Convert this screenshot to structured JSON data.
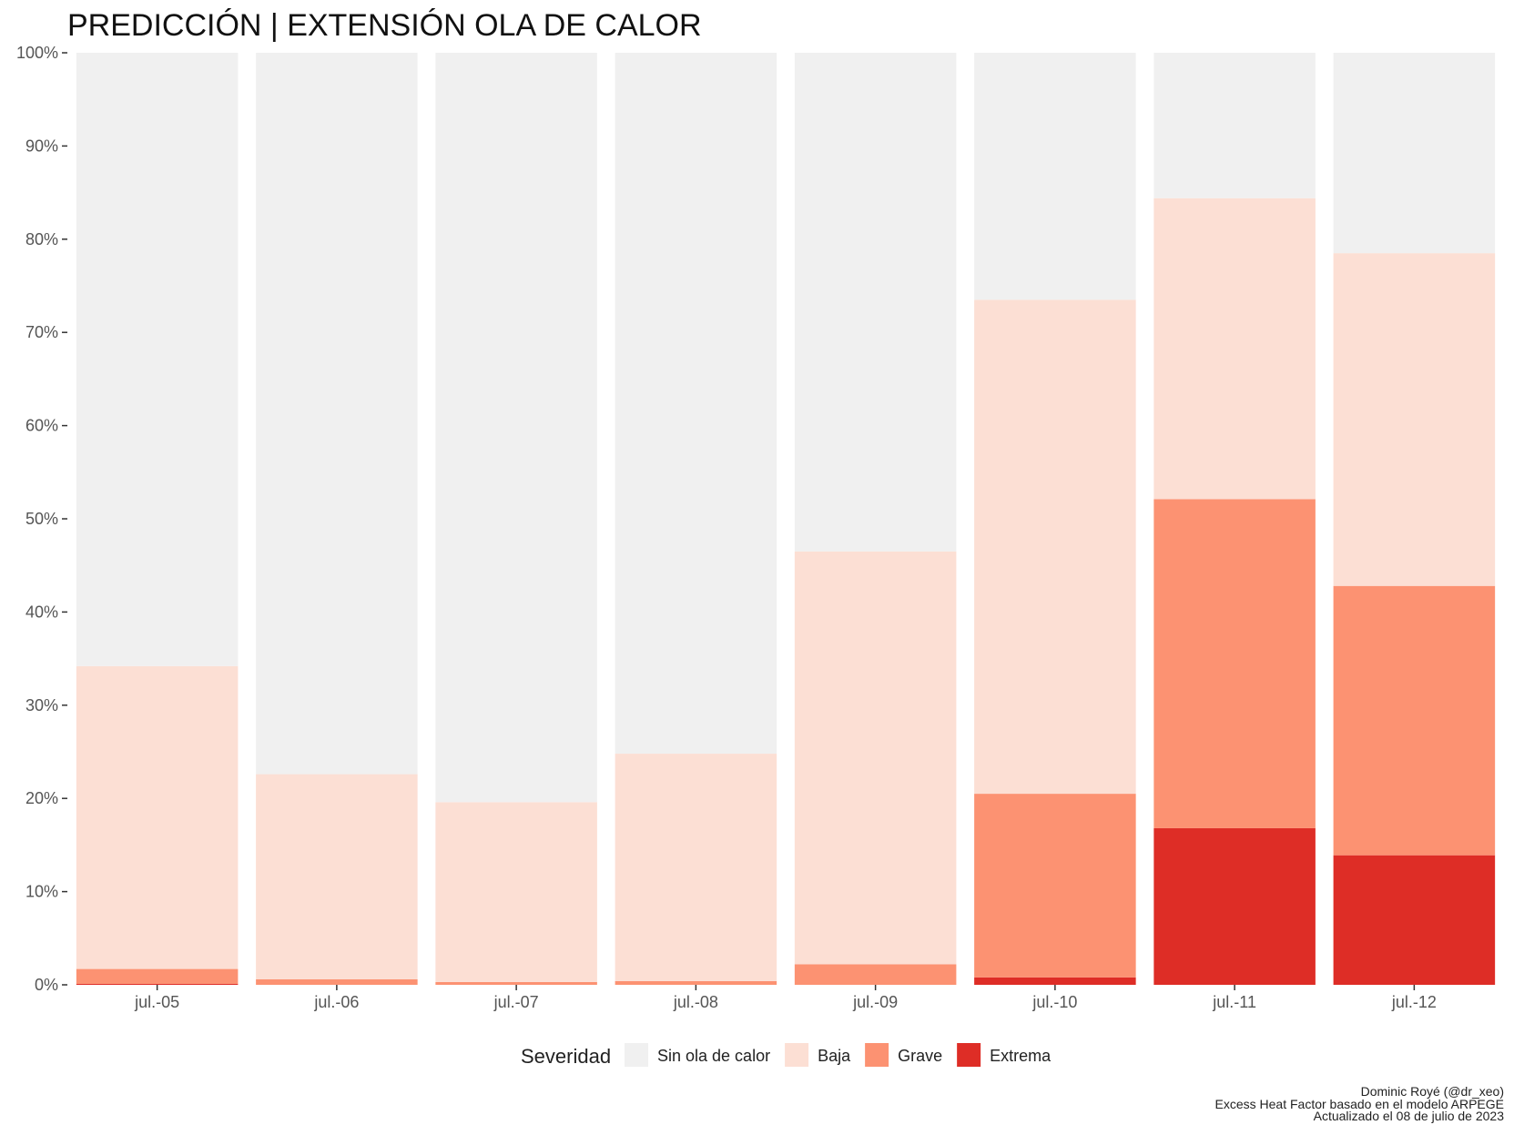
{
  "chart_data": {
    "type": "bar",
    "stacked": true,
    "title": "PREDICCIÓN | EXTENSIÓN OLA DE CALOR",
    "categories": [
      "jul.-05",
      "jul.-06",
      "jul.-07",
      "jul.-08",
      "jul.-09",
      "jul.-10",
      "jul.-11",
      "jul.-12"
    ],
    "series": [
      {
        "name": "Extrema",
        "color": "#de2d26",
        "values": [
          0.1,
          0.0,
          0.0,
          0.0,
          0.0,
          0.8,
          16.8,
          13.9
        ]
      },
      {
        "name": "Grave",
        "color": "#fc9272",
        "values": [
          1.6,
          0.6,
          0.3,
          0.4,
          2.2,
          19.7,
          35.3,
          28.9
        ]
      },
      {
        "name": "Baja",
        "color": "#fcdfd4",
        "values": [
          32.5,
          22.0,
          19.3,
          24.4,
          44.3,
          53.0,
          32.3,
          35.7
        ]
      },
      {
        "name": "Sin ola de calor",
        "color": "#f0f0f0",
        "values": [
          65.8,
          77.4,
          80.4,
          75.2,
          53.5,
          26.5,
          15.6,
          21.5
        ]
      }
    ],
    "ylim": [
      0,
      100
    ],
    "y_ticks": [
      "0%",
      "10%",
      "20%",
      "30%",
      "40%",
      "50%",
      "60%",
      "70%",
      "80%",
      "90%",
      "100%"
    ],
    "xlabel": "",
    "ylabel": "",
    "grid": false,
    "legend": {
      "title": "Severidad",
      "placement": "bottom",
      "order": [
        "Sin ola de calor",
        "Baja",
        "Grave",
        "Extrema"
      ]
    },
    "caption": [
      "Dominic Royé (@dr_xeo)",
      "Excess Heat Factor basado en el modelo ARPEGE",
      "Actualizado el 08 de julio de 2023"
    ]
  }
}
